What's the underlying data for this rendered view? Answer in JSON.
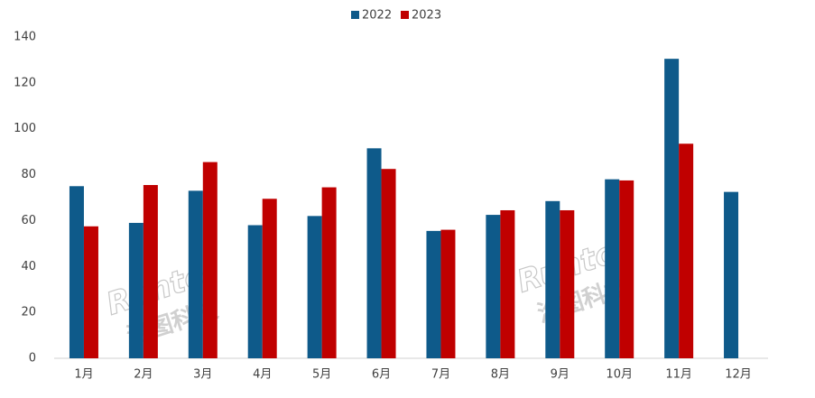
{
  "chart_data": {
    "type": "bar",
    "categories": [
      "1月",
      "2月",
      "3月",
      "4月",
      "5月",
      "6月",
      "7月",
      "8月",
      "9月",
      "10月",
      "11月",
      "12月"
    ],
    "series": [
      {
        "name": "2022",
        "color": "#0e5a8a",
        "values": [
          75,
          59,
          73,
          58,
          62,
          91.5,
          55.5,
          62.5,
          68.5,
          78,
          130.5,
          72.5
        ]
      },
      {
        "name": "2023",
        "color": "#c00000",
        "values": [
          57.5,
          75.5,
          85.5,
          69.5,
          74.5,
          82.5,
          56,
          64.5,
          64.5,
          77.5,
          93.5,
          null
        ]
      }
    ],
    "ylim": [
      0,
      140
    ],
    "yticks": [
      0,
      20,
      40,
      60,
      80,
      100,
      120,
      140
    ],
    "grid": false,
    "watermark": [
      "Runto",
      "洛图科技"
    ]
  }
}
